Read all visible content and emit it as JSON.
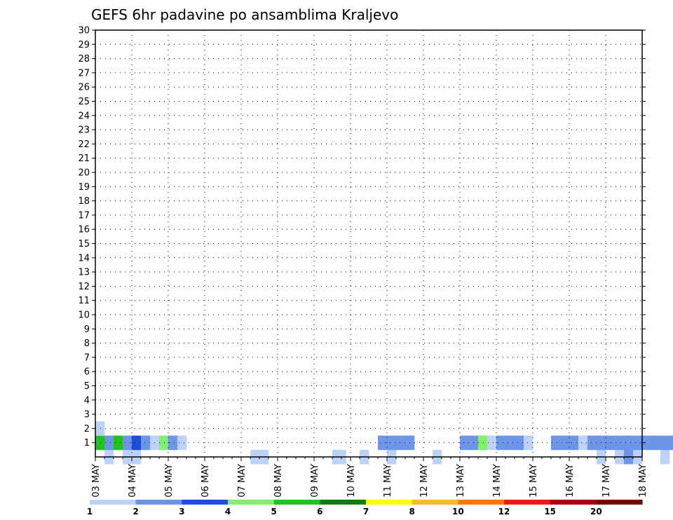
{
  "chart_data": {
    "type": "heatmap",
    "title": "GEFS 6hr padavine po ansamblima Kraljevo",
    "xlabel": "",
    "ylabel": "",
    "x_ticks": [
      "03 MAY",
      "04 MAY",
      "05 MAY",
      "06 MAY",
      "07 MAY",
      "08 MAY",
      "09 MAY",
      "10 MAY",
      "11 MAY",
      "12 MAY",
      "13 MAY",
      "14 MAY",
      "15 MAY",
      "16 MAY",
      "17 MAY",
      "18 MAY"
    ],
    "y_ticks": [
      "1",
      "2",
      "3",
      "4",
      "5",
      "6",
      "7",
      "8",
      "9",
      "10",
      "11",
      "12",
      "13",
      "14",
      "15",
      "16",
      "17",
      "18",
      "19",
      "20",
      "21",
      "22",
      "23",
      "24",
      "25",
      "26",
      "27",
      "28",
      "29",
      "30"
    ],
    "x_range": [
      "03 MAY 00Z",
      "18 MAY 00Z"
    ],
    "time_step_hours": 6,
    "y_range": [
      0,
      30
    ],
    "grid": true,
    "grid_style": "dotted",
    "legend_position": "bottom",
    "color_levels": [
      1,
      2,
      3,
      4,
      5,
      6,
      7,
      8,
      10,
      12,
      15,
      20
    ],
    "color_labels": [
      "1",
      "2",
      "3",
      "4",
      "5",
      "6",
      "7",
      "8",
      "10",
      "12",
      "15",
      "20"
    ],
    "colors": [
      "#bcd2fa",
      "#6e96e8",
      "#1e4fd8",
      "#80f06e",
      "#21c41e",
      "#0e7d12",
      "#ffff00",
      "#ffb43a",
      "#ff7814",
      "#e61e14",
      "#a5000a",
      "#700000"
    ],
    "note_values": "values = 6hr precipitation class index (0=none, 1..12 = legend bins); rows = ensemble member 0..30",
    "members": [
      {
        "member": 0,
        "values": [
          [
            1,
            1
          ],
          [
            3,
            1
          ],
          [
            4,
            1
          ],
          [
            17,
            1
          ],
          [
            18,
            1
          ],
          [
            26,
            1
          ],
          [
            26.5,
            1
          ],
          [
            29,
            1
          ],
          [
            32,
            1
          ],
          [
            37,
            1
          ],
          [
            55,
            1
          ],
          [
            57,
            1
          ],
          [
            58,
            2
          ],
          [
            59,
            1
          ],
          [
            62,
            1
          ],
          [
            65,
            1
          ],
          [
            85,
            1
          ],
          [
            86,
            1
          ],
          [
            100,
            1
          ],
          [
            107,
            1
          ],
          [
            108,
            1
          ],
          [
            113,
            1
          ],
          [
            114,
            1
          ],
          [
            118,
            1
          ],
          [
            119,
            1
          ],
          [
            120,
            1
          ],
          [
            130,
            1
          ],
          [
            135,
            1
          ],
          [
            136,
            1
          ],
          [
            138,
            1
          ],
          [
            140,
            1
          ],
          [
            141,
            1
          ],
          [
            145,
            1
          ],
          [
            148,
            1
          ],
          [
            149,
            1
          ],
          [
            150,
            1
          ],
          [
            152,
            1
          ],
          [
            153,
            1
          ],
          [
            154,
            1
          ],
          [
            155,
            1
          ],
          [
            156,
            1
          ],
          [
            157,
            1
          ],
          [
            158,
            1
          ]
        ]
      },
      {
        "member": 1,
        "values": [
          [
            0,
            5
          ],
          [
            1,
            2
          ],
          [
            2,
            5
          ],
          [
            3,
            2
          ],
          [
            4,
            3
          ],
          [
            5,
            2
          ],
          [
            6,
            1
          ],
          [
            7,
            4
          ],
          [
            8,
            2
          ],
          [
            9,
            1
          ],
          [
            31,
            2
          ],
          [
            32,
            2
          ],
          [
            33,
            2
          ],
          [
            34,
            2
          ],
          [
            40,
            2
          ],
          [
            41,
            2
          ],
          [
            42,
            4
          ],
          [
            43,
            1
          ],
          [
            44,
            2
          ],
          [
            45,
            2
          ],
          [
            46,
            2
          ],
          [
            47,
            1
          ],
          [
            50,
            2
          ],
          [
            51,
            2
          ],
          [
            52,
            2
          ],
          [
            53,
            1
          ],
          [
            54,
            2
          ],
          [
            55,
            2
          ],
          [
            56,
            2
          ],
          [
            57,
            2
          ],
          [
            58,
            2
          ],
          [
            59,
            2
          ],
          [
            60,
            2
          ],
          [
            61,
            2
          ],
          [
            62,
            2
          ],
          [
            63,
            2
          ],
          [
            64,
            2
          ],
          [
            65,
            2
          ],
          [
            66,
            2
          ],
          [
            67,
            2
          ],
          [
            68,
            2
          ],
          [
            69,
            2
          ],
          [
            70,
            2
          ],
          [
            71,
            2
          ],
          [
            72,
            2
          ],
          [
            73,
            2
          ],
          [
            74,
            2
          ],
          [
            75,
            2
          ],
          [
            76,
            2
          ],
          [
            77,
            2
          ],
          [
            78,
            2
          ],
          [
            79,
            2
          ],
          [
            80,
            2
          ],
          [
            81,
            2
          ],
          [
            82,
            2
          ],
          [
            83,
            2
          ],
          [
            84,
            2
          ],
          [
            85,
            2
          ],
          [
            86,
            2
          ],
          [
            87,
            2
          ],
          [
            88,
            2
          ],
          [
            89,
            2
          ],
          [
            90,
            2
          ],
          [
            91,
            2
          ],
          [
            92,
            2
          ],
          [
            93,
            2
          ],
          [
            94,
            2
          ],
          [
            95,
            2
          ],
          [
            96,
            2
          ]
        ]
      },
      {
        "member": 2,
        "values": [
          [
            0,
            1
          ]
        ]
      }
    ]
  }
}
